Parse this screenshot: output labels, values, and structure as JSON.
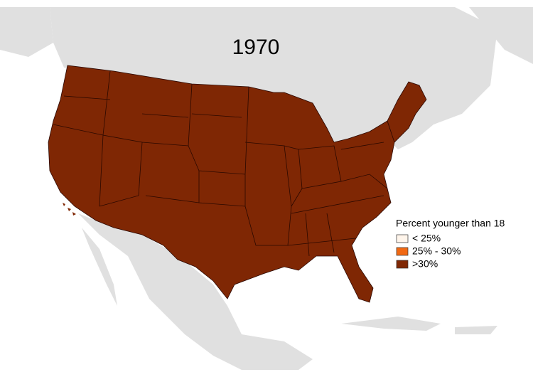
{
  "title": "1970",
  "legend": {
    "title": "Percent younger than 18",
    "items": [
      {
        "label": "< 25%",
        "color": "#fff5eb"
      },
      {
        "label": "25% - 30%",
        "color": "#f16913"
      },
      {
        "label": ">30%",
        "color": "#7f2704"
      }
    ]
  }
}
